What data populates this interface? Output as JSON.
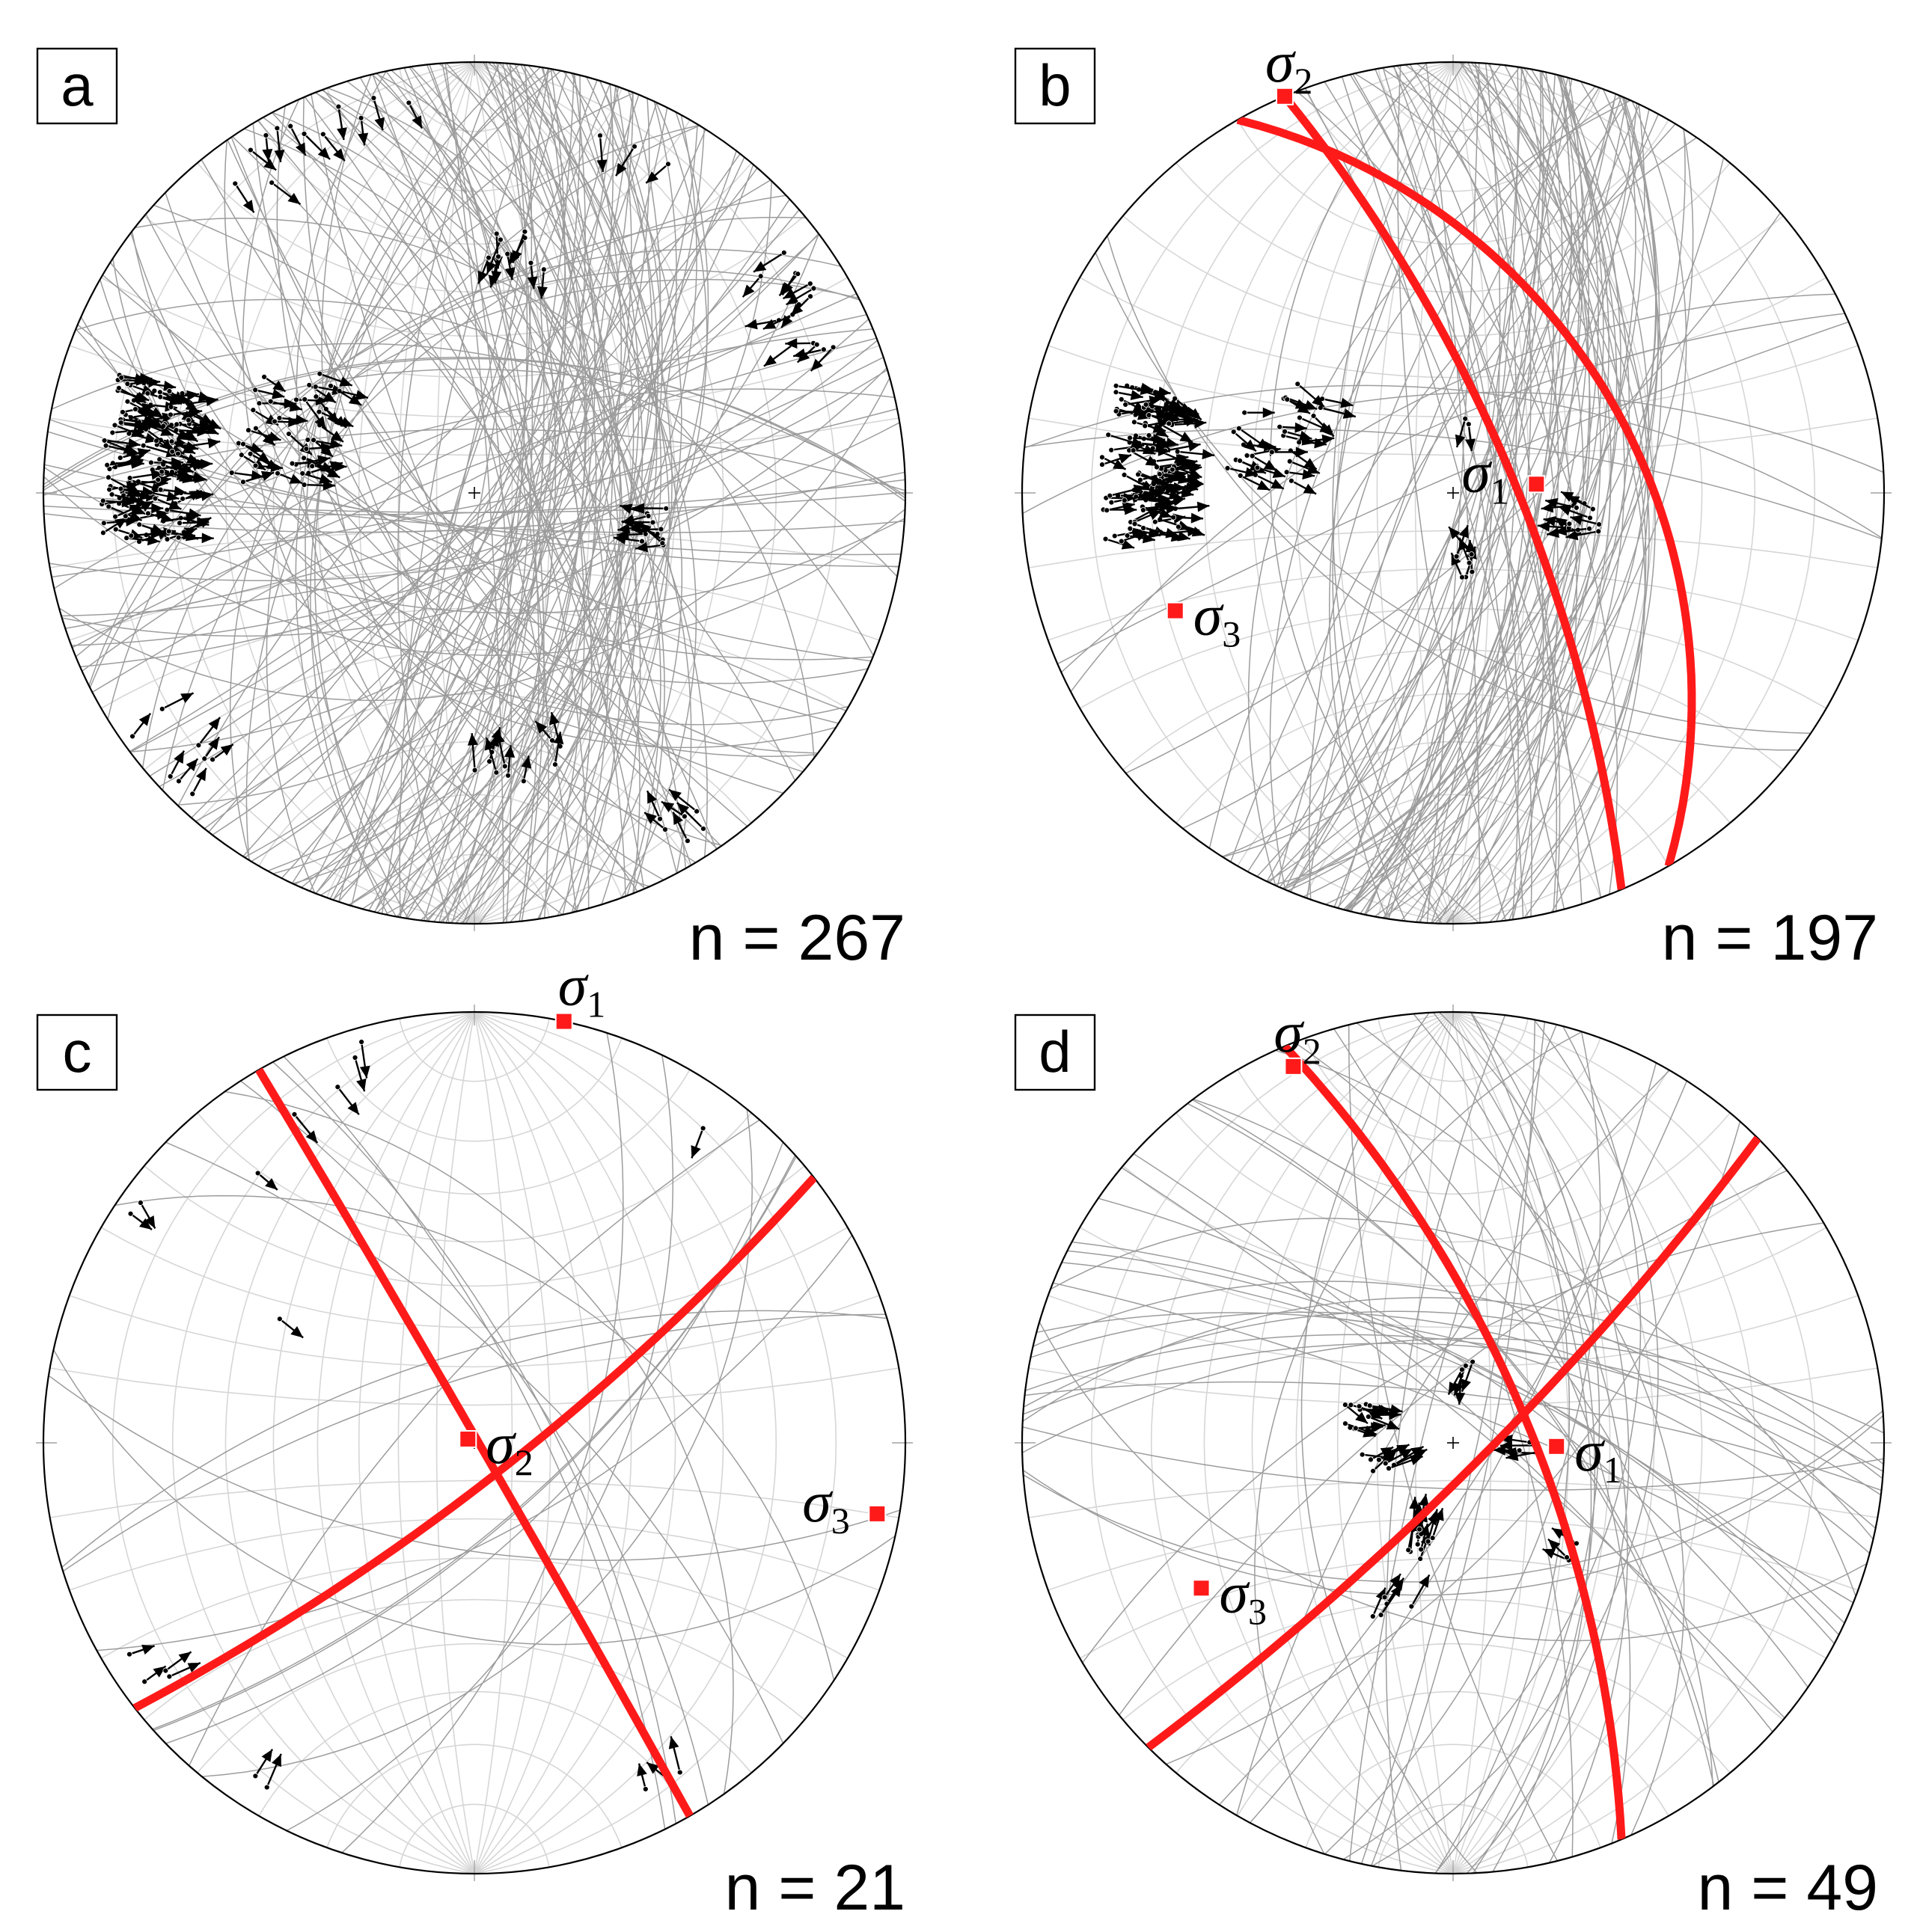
{
  "figure": {
    "panels": [
      {
        "letter": "a",
        "count_label": "n = 267",
        "stress_axes": [],
        "fault_clusters": [
          {
            "trend": 275,
            "plunge": 15,
            "count": 120,
            "dispersion": 7
          },
          {
            "trend": 290,
            "plunge": 40,
            "count": 40,
            "dispersion": 9
          },
          {
            "trend": 60,
            "plunge": 8,
            "count": 15,
            "dispersion": 4
          },
          {
            "trend": 10,
            "plunge": 30,
            "count": 10,
            "dispersion": 4
          },
          {
            "trend": 170,
            "plunge": 25,
            "count": 10,
            "dispersion": 5
          },
          {
            "trend": 230,
            "plunge": 5,
            "count": 8,
            "dispersion": 4
          },
          {
            "trend": 148,
            "plunge": 5,
            "count": 6,
            "dispersion": 3
          },
          {
            "trend": 330,
            "plunge": 5,
            "count": 8,
            "dispersion": 4
          },
          {
            "trend": 345,
            "plunge": 3,
            "count": 4,
            "dispersion": 3
          },
          {
            "trend": 25,
            "plunge": 5,
            "count": 3,
            "dispersion": 3
          },
          {
            "trend": 100,
            "plunge": 45,
            "count": 12,
            "dispersion": 4
          }
        ]
      },
      {
        "letter": "b",
        "count_label": "n = 197",
        "stress_axes": [
          {
            "label": "σ",
            "subscript": "2",
            "trend": 337,
            "plunge": 0,
            "label_anchor": "above"
          },
          {
            "label": "σ",
            "subscript": "1",
            "trend": 84,
            "plunge": 68,
            "label_anchor": "left"
          },
          {
            "label": "σ",
            "subscript": "3",
            "trend": 247,
            "plunge": 20,
            "label_anchor": "right"
          }
        ],
        "red_planes": [
          {
            "strike": 337,
            "dip": 74
          },
          {
            "strike": 330,
            "dip": 44
          }
        ],
        "fault_clusters": [
          {
            "trend": 275,
            "plunge": 18,
            "count": 110,
            "dispersion": 7
          },
          {
            "trend": 290,
            "plunge": 42,
            "count": 30,
            "dispersion": 8
          },
          {
            "trend": 100,
            "plunge": 55,
            "count": 12,
            "dispersion": 4
          },
          {
            "trend": 10,
            "plunge": 70,
            "count": 2,
            "dispersion": 2
          },
          {
            "trend": 170,
            "plunge": 70,
            "count": 6,
            "dispersion": 4
          }
        ]
      },
      {
        "letter": "c",
        "count_label": "n = 21",
        "stress_axes": [
          {
            "label": "σ",
            "subscript": "1",
            "trend": 12,
            "plunge": 0,
            "label_anchor": "top-right"
          },
          {
            "label": "σ",
            "subscript": "2",
            "trend": 300,
            "plunge": 88,
            "label_anchor": "right"
          },
          {
            "label": "σ",
            "subscript": "3",
            "trend": 100,
            "plunge": 3,
            "label_anchor": "left"
          }
        ],
        "red_planes": [
          {
            "strike": 330,
            "dip": 89
          },
          {
            "strike": 52,
            "dip": 80
          }
        ],
        "fault_clusters": [
          {
            "trend": 345,
            "plunge": 3,
            "count": 2,
            "dispersion": 2
          },
          {
            "trend": 335,
            "plunge": 8,
            "count": 2,
            "dispersion": 2
          },
          {
            "trend": 305,
            "plunge": 3,
            "count": 2,
            "dispersion": 2
          },
          {
            "trend": 320,
            "plunge": 12,
            "count": 1,
            "dispersion": 2
          },
          {
            "trend": 300,
            "plunge": 35,
            "count": 1,
            "dispersion": 2
          },
          {
            "trend": 235,
            "plunge": 5,
            "count": 4,
            "dispersion": 2
          },
          {
            "trend": 215,
            "plunge": 4,
            "count": 2,
            "dispersion": 2
          },
          {
            "trend": 150,
            "plunge": 5,
            "count": 3,
            "dispersion": 2
          },
          {
            "trend": 38,
            "plunge": 5,
            "count": 1,
            "dispersion": 2
          }
        ]
      },
      {
        "letter": "d",
        "count_label": "n = 49",
        "stress_axes": [
          {
            "label": "σ",
            "subscript": "2",
            "trend": 337,
            "plunge": 3,
            "label_anchor": "above"
          },
          {
            "label": "σ",
            "subscript": "1",
            "trend": 92,
            "plunge": 63,
            "label_anchor": "right"
          },
          {
            "label": "σ",
            "subscript": "3",
            "trend": 240,
            "plunge": 22,
            "label_anchor": "right"
          }
        ],
        "red_planes": [
          {
            "strike": 337,
            "dip": 70
          },
          {
            "strike": 45,
            "dip": 82
          }
        ],
        "fault_clusters": [
          {
            "trend": 285,
            "plunge": 65,
            "count": 12,
            "dispersion": 5
          },
          {
            "trend": 255,
            "plunge": 70,
            "count": 8,
            "dispersion": 4
          },
          {
            "trend": 200,
            "plunge": 62,
            "count": 12,
            "dispersion": 4
          },
          {
            "trend": 10,
            "plunge": 70,
            "count": 4,
            "dispersion": 3
          },
          {
            "trend": 95,
            "plunge": 70,
            "count": 5,
            "dispersion": 3
          },
          {
            "trend": 135,
            "plunge": 50,
            "count": 3,
            "dispersion": 3
          },
          {
            "trend": 200,
            "plunge": 45,
            "count": 5,
            "dispersion": 3
          }
        ]
      }
    ]
  },
  "colors": {
    "background": "#ffffff",
    "net_grid": "#d6d6d6",
    "fault_plane": "#8c8c8c",
    "primitive": "#000000",
    "stress_axis": "#ff1a1a",
    "arrow": "#000000"
  }
}
